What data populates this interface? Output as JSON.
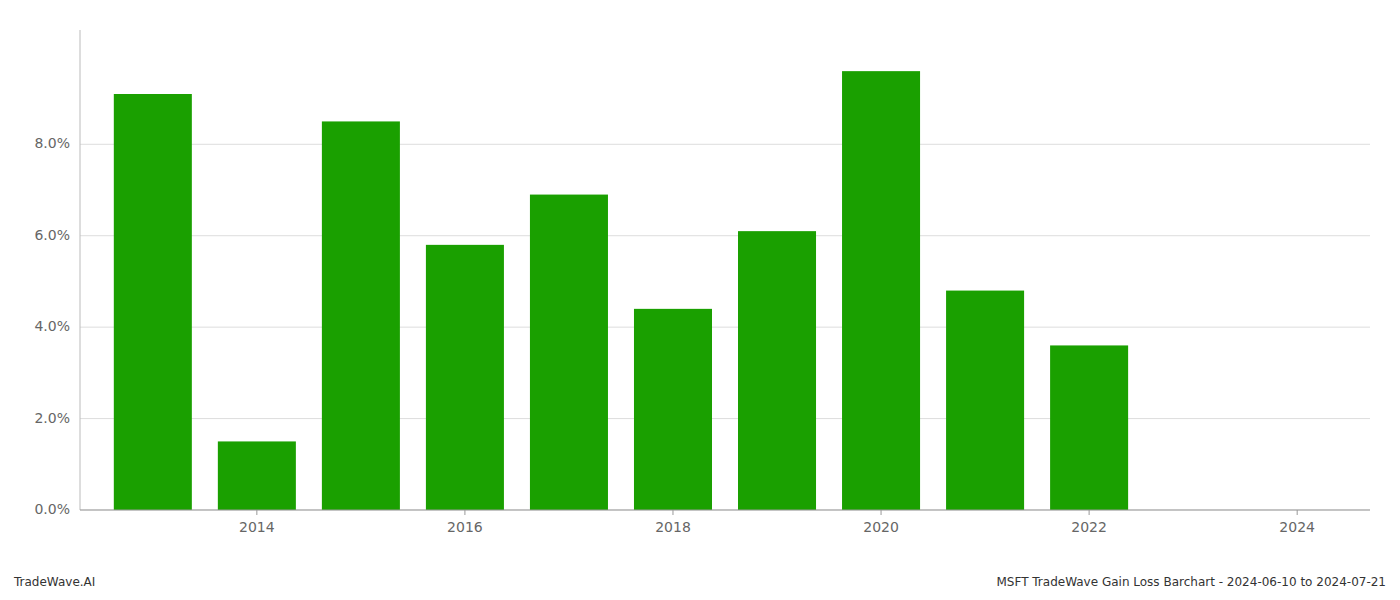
{
  "chart_data": {
    "type": "bar",
    "x": [
      2013,
      2014,
      2015,
      2016,
      2017,
      2018,
      2019,
      2020,
      2021,
      2022,
      2023
    ],
    "values": [
      0.091,
      0.015,
      0.085,
      0.058,
      0.069,
      0.044,
      0.061,
      0.096,
      0.048,
      0.036,
      0.0
    ],
    "color": "#1aa000",
    "xlim": [
      2012.3,
      2024.7
    ],
    "xticks": [
      2014,
      2016,
      2018,
      2020,
      2022,
      2024
    ],
    "ylim": [
      0,
      0.105
    ],
    "yticks": [
      {
        "value": 0.0,
        "label": "0.0%"
      },
      {
        "value": 0.02,
        "label": "2.0%"
      },
      {
        "value": 0.04,
        "label": "4.0%"
      },
      {
        "value": 0.06,
        "label": "6.0%"
      },
      {
        "value": 0.08,
        "label": "8.0%"
      }
    ],
    "grid": true,
    "annotations": [
      "TradeWave.AI",
      "MSFT TradeWave Gain Loss Barchart - 2024-06-10 to 2024-07-21"
    ]
  }
}
